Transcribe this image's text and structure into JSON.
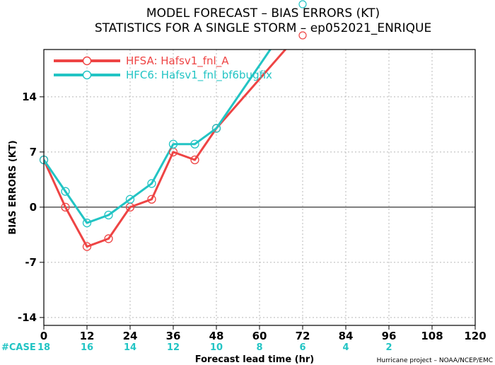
{
  "chart_data": {
    "type": "line",
    "title": "MODEL FORECAST – BIAS ERRORS (KT)",
    "subtitle": "STATISTICS FOR A SINGLE STORM – ep052021_ENRIQUE",
    "xlabel": "Forecast lead time (hr)",
    "ylabel": "BIAS ERRORS (KT)",
    "xlim": [
      0,
      120
    ],
    "ylim": [
      -15,
      20
    ],
    "x_ticks": [
      0,
      12,
      24,
      36,
      48,
      60,
      72,
      84,
      96,
      108,
      120
    ],
    "y_ticks": [
      -14,
      -7,
      0,
      7,
      14
    ],
    "grid": true,
    "legend_position": "top-left",
    "series": [
      {
        "name": "HFSA: Hafsv1_fnl_A",
        "color": "#ee4444",
        "x": [
          0,
          6,
          12,
          18,
          24,
          30,
          36,
          42,
          48,
          72
        ],
        "y": [
          6,
          0,
          -5,
          -4,
          0,
          1,
          7,
          6,
          10,
          22.5
        ]
      },
      {
        "name": "HFC6: Hafsv1_fnl_bf6bugfix",
        "color": "#22c4c4",
        "x": [
          0,
          6,
          12,
          18,
          24,
          30,
          36,
          42,
          48,
          72
        ],
        "y": [
          6,
          2,
          -2,
          -1,
          1,
          3,
          8,
          8,
          10,
          26
        ]
      }
    ],
    "case_counts": {
      "label": "#CASE",
      "x": [
        0,
        12,
        24,
        36,
        48,
        60,
        72,
        84,
        96
      ],
      "values": [
        "18",
        "16",
        "14",
        "12",
        "10",
        "8",
        "6",
        "4",
        "2"
      ]
    },
    "credit": "Hurricane project – NOAA/NCEP/EMC"
  }
}
